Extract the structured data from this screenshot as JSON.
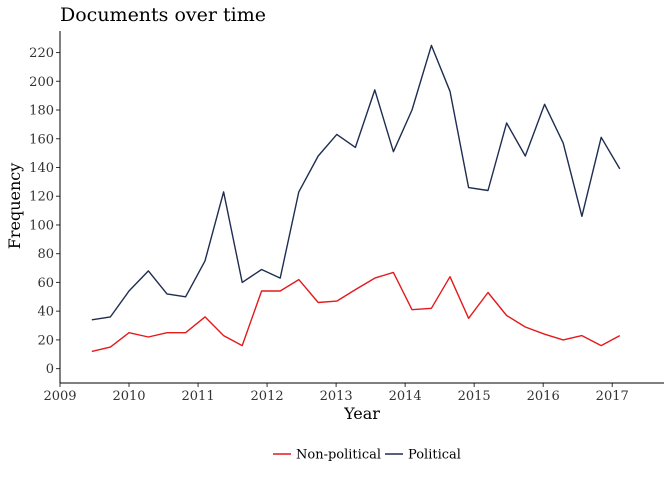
{
  "chart_data": {
    "type": "line",
    "title": "Documents over time",
    "xlabel": "Year",
    "ylabel": "Frequency",
    "xlim": [
      2009,
      2017.75
    ],
    "ylim": [
      -10,
      235
    ],
    "x_ticks": [
      2009,
      2010,
      2011,
      2012,
      2013,
      2014,
      2015,
      2016,
      2017
    ],
    "y_ticks": [
      0,
      20,
      40,
      60,
      80,
      100,
      120,
      140,
      160,
      180,
      200,
      220
    ],
    "grid": false,
    "legend_position": "bottom",
    "x": [
      2009.46,
      2009.73,
      2010.0,
      2010.28,
      2010.55,
      2010.82,
      2011.1,
      2011.37,
      2011.64,
      2011.92,
      2012.19,
      2012.46,
      2012.74,
      2013.01,
      2013.28,
      2013.56,
      2013.83,
      2014.1,
      2014.38,
      2014.65,
      2014.92,
      2015.2,
      2015.47,
      2015.74,
      2016.02,
      2016.29,
      2016.56,
      2016.84,
      2017.11
    ],
    "series": [
      {
        "name": "Non-political",
        "color": "#e41a1c",
        "values": [
          12,
          15,
          25,
          22,
          25,
          25,
          36,
          23,
          16,
          54,
          54,
          62,
          46,
          47,
          55,
          63,
          67,
          41,
          42,
          64,
          35,
          53,
          37,
          29,
          24,
          20,
          23,
          16,
          23
        ]
      },
      {
        "name": "Political",
        "color": "#1f2d50",
        "values": [
          34,
          36,
          54,
          68,
          52,
          50,
          75,
          123,
          60,
          69,
          63,
          123,
          148,
          163,
          154,
          194,
          151,
          180,
          225,
          193,
          126,
          124,
          171,
          148,
          184,
          157,
          106,
          161,
          139
        ]
      }
    ]
  }
}
